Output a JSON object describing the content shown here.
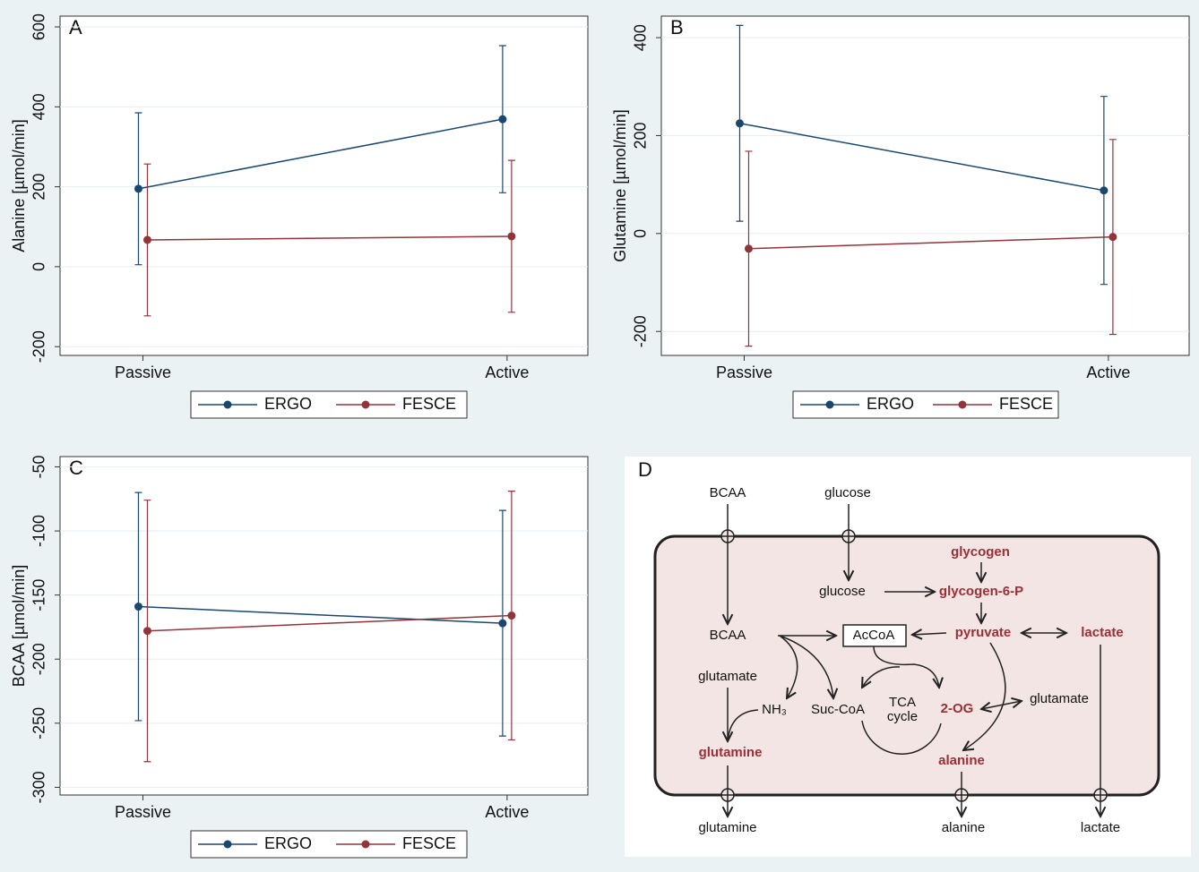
{
  "chart_data": [
    {
      "type": "line",
      "label": "A",
      "ylabel": "Alanine [µmol/min]",
      "categories": [
        "Passive",
        "Active"
      ],
      "series": [
        {
          "name": "ERGO",
          "color": "#1a476f",
          "values": [
            195,
            369
          ],
          "errors": [
            190,
            184
          ]
        },
        {
          "name": "FESCE",
          "color": "#90353b",
          "values": [
            67,
            76
          ],
          "errors": [
            190,
            190
          ]
        }
      ],
      "ylim": [
        -222,
        627
      ],
      "yticks": [
        -200,
        0,
        200,
        400,
        600
      ],
      "grid": true
    },
    {
      "type": "line",
      "label": "B",
      "ylabel": "Glutamine [µmol/min]",
      "categories": [
        "Passive",
        "Active"
      ],
      "series": [
        {
          "name": "ERGO",
          "color": "#1a476f",
          "values": [
            225,
            88
          ],
          "errors": [
            200,
            192
          ]
        },
        {
          "name": "FESCE",
          "color": "#90353b",
          "values": [
            -31,
            -7
          ],
          "errors": [
            199,
            199
          ]
        }
      ],
      "ylim": [
        -249,
        444
      ],
      "yticks": [
        -200,
        0,
        200,
        400
      ],
      "grid": true
    },
    {
      "type": "line",
      "label": "C",
      "ylabel": "BCAA [µmol/min]",
      "categories": [
        "Passive",
        "Active"
      ],
      "series": [
        {
          "name": "ERGO",
          "color": "#1a476f",
          "values": [
            -159,
            -172
          ],
          "errors": [
            89,
            88
          ]
        },
        {
          "name": "FESCE",
          "color": "#90353b",
          "values": [
            -178,
            -166
          ],
          "errors": [
            102,
            97
          ]
        }
      ],
      "ylim": [
        -306,
        -42
      ],
      "yticks": [
        -300,
        -250,
        -200,
        -150,
        -100,
        -50
      ],
      "grid": true
    }
  ],
  "diagram": {
    "label": "D",
    "nodes": [
      "BCAA",
      "glucose",
      "glycogen",
      "glucose",
      "glycogen-6-P",
      "BCAA",
      "AcCoA",
      "pyruvate",
      "lactate",
      "glutamate",
      "NH₃",
      "Suc-CoA",
      "TCA",
      "cycle",
      "2-OG",
      "glutamate",
      "glutamine",
      "alanine",
      "glutamine",
      "alanine",
      "lactate"
    ]
  }
}
